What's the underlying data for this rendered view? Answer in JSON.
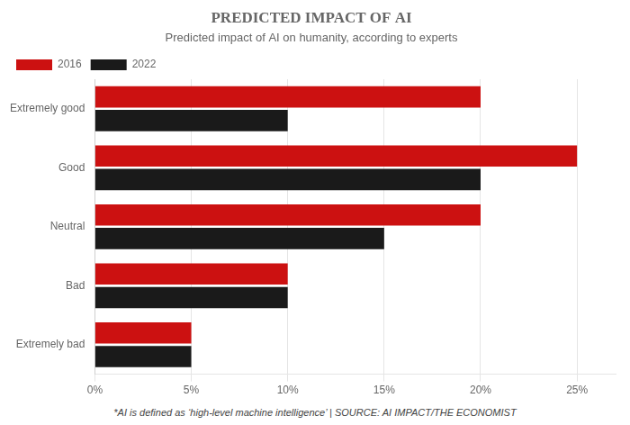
{
  "chart_data": {
    "type": "bar",
    "orientation": "horizontal",
    "title": "PREDICTED IMPACT OF AI",
    "subtitle": "Predicted impact of AI on humanity, according to experts",
    "footnote": "*AI is defined as ‘high-level machine intelligence’ | SOURCE: AI IMPACT/THE ECONOMIST",
    "categories": [
      "Extremely good",
      "Good",
      "Neutral",
      "Bad",
      "Extremely bad"
    ],
    "series": [
      {
        "name": "2016",
        "color": "#cc1111",
        "values": [
          20,
          25,
          20,
          10,
          5
        ]
      },
      {
        "name": "2022",
        "color": "#1a1a1a",
        "values": [
          10,
          20,
          15,
          10,
          5
        ]
      }
    ],
    "xlim": [
      0,
      27
    ],
    "xticks": [
      {
        "value": 0,
        "label": "0%"
      },
      {
        "value": 5,
        "label": "5%"
      },
      {
        "value": 10,
        "label": "10%"
      },
      {
        "value": 15,
        "label": "15%"
      },
      {
        "value": 20,
        "label": "20%"
      },
      {
        "value": 25,
        "label": "25%"
      }
    ],
    "grid": true,
    "legend": "top"
  }
}
